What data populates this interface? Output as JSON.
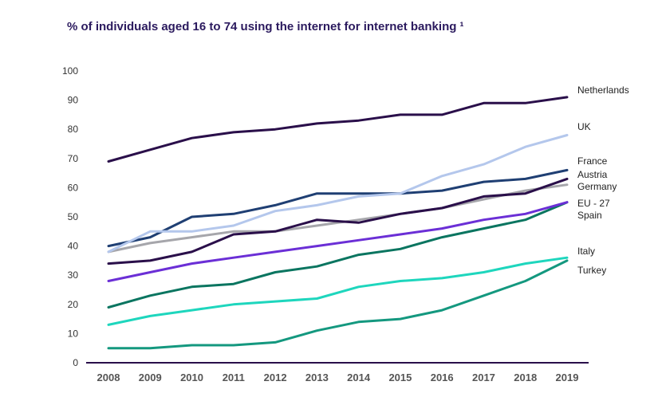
{
  "title": "% of individuals aged 16 to 74 using the internet for internet banking ¹",
  "chart_data": {
    "type": "line",
    "x": [
      "2008",
      "2009",
      "2010",
      "2011",
      "2012",
      "2013",
      "2014",
      "2015",
      "2016",
      "2017",
      "2018",
      "2019"
    ],
    "ylim": [
      0,
      100
    ],
    "yticks": [
      "0",
      "10",
      "20",
      "30",
      "40",
      "50",
      "60",
      "70",
      "80",
      "90",
      "100"
    ],
    "grid": false,
    "legend": "end-labels",
    "series": [
      {
        "name": "Netherlands",
        "color": "#2a0f4a",
        "values": [
          69,
          73,
          77,
          79,
          80,
          82,
          83,
          85,
          85,
          89,
          89,
          91
        ]
      },
      {
        "name": "UK",
        "color": "#b4c7ec",
        "values": [
          38,
          45,
          45,
          47,
          52,
          54,
          57,
          58,
          64,
          68,
          74,
          78
        ]
      },
      {
        "name": "France",
        "color": "#1f3f73",
        "values": [
          40,
          43,
          50,
          51,
          54,
          58,
          58,
          58,
          59,
          62,
          63,
          66
        ]
      },
      {
        "name": "Austria",
        "color": "#2a0f4a",
        "values": [
          34,
          35,
          38,
          44,
          45,
          49,
          48,
          51,
          53,
          57,
          58,
          63
        ]
      },
      {
        "name": "Germany",
        "color": "#a6a6ab",
        "values": [
          38,
          41,
          43,
          45,
          45,
          47,
          49,
          51,
          53,
          56,
          59,
          61
        ]
      },
      {
        "name": "EU - 27",
        "color": "#6b2fd6",
        "values": [
          28,
          31,
          34,
          36,
          38,
          40,
          42,
          44,
          46,
          49,
          51,
          55
        ]
      },
      {
        "name": "Spain",
        "color": "#0a7560",
        "values": [
          19,
          23,
          26,
          27,
          31,
          33,
          37,
          39,
          43,
          46,
          49,
          55
        ]
      },
      {
        "name": "Italy",
        "color": "#1ed6bd",
        "values": [
          13,
          16,
          18,
          20,
          21,
          22,
          26,
          28,
          29,
          31,
          34,
          36
        ]
      },
      {
        "name": "Turkey",
        "color": "#14987f",
        "values": [
          5,
          5,
          6,
          6,
          7,
          11,
          14,
          15,
          18,
          23,
          28,
          35
        ]
      }
    ]
  }
}
